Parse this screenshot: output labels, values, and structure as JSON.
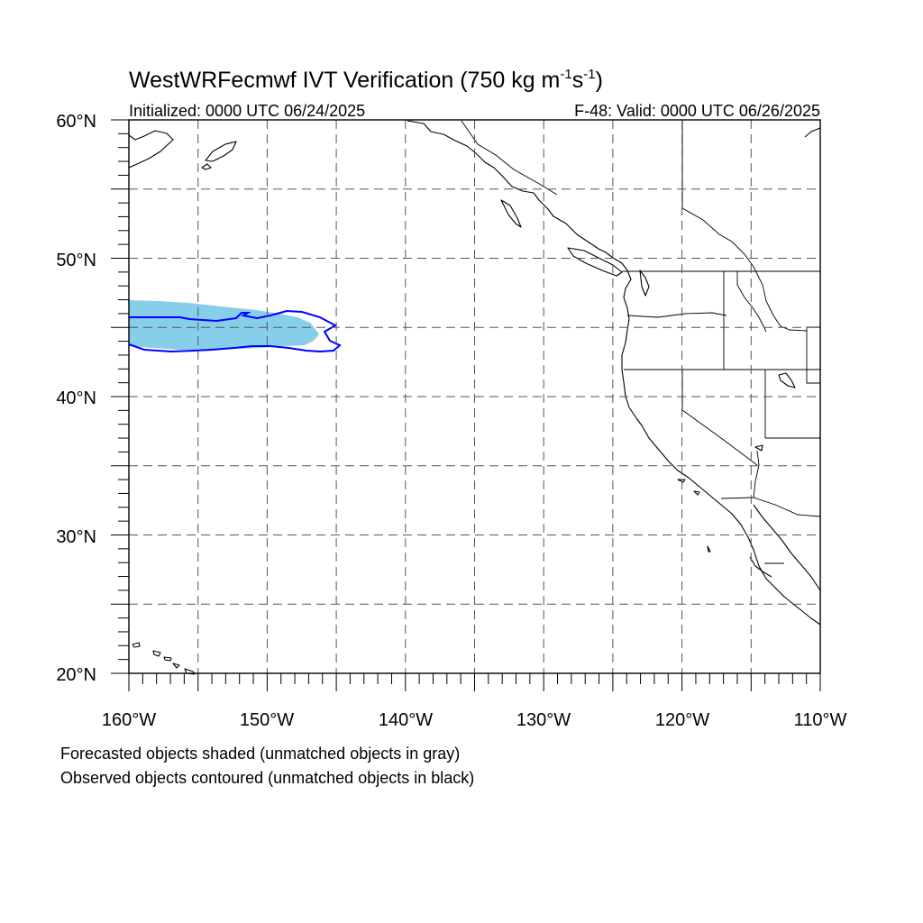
{
  "title": {
    "main": "WestWRFecmwf IVT Verification (750 kg m",
    "sup1": "-1",
    "s": "s",
    "sup2": "-1",
    "close": ")"
  },
  "initialized": "Initialized: 0000 UTC 06/24/2025",
  "valid": "F-48: Valid: 0000 UTC 06/26/2025",
  "lat_labels": [
    "60°N",
    "50°N",
    "40°N",
    "30°N",
    "20°N"
  ],
  "lon_labels": [
    "160°W",
    "150°W",
    "140°W",
    "130°W",
    "120°W",
    "110°W"
  ],
  "notes": {
    "line1": "Forecasted objects shaded (unmatched objects in gray)",
    "line2": "Observed objects contoured (unmatched objects in black)"
  },
  "map": {
    "lon_range": [
      -160,
      -110
    ],
    "lat_range": [
      20,
      60
    ],
    "grid_spacing_deg": 5,
    "grid_style": "dashed",
    "forecast_fill_color": "#87ceeb",
    "observed_contour_color": "#0000ff"
  }
}
